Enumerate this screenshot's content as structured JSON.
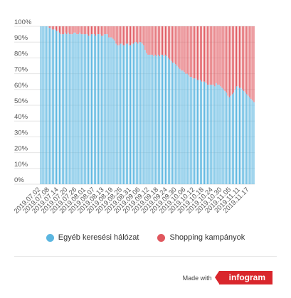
{
  "chart_data": {
    "type": "stacked-bar-100",
    "ylim": [
      0,
      100
    ],
    "y_ticks": [
      "0%",
      "10%",
      "20%",
      "30%",
      "40%",
      "50%",
      "60%",
      "70%",
      "80%",
      "90%",
      "100%"
    ],
    "x_tick_labels": [
      "2019.07.02",
      "2019.07.08",
      "2019.07.14",
      "2019.07.20",
      "2019.07.26",
      "2019.08.01",
      "2019.08.07",
      "2019.08.13",
      "2019.08.19",
      "2019.08.25",
      "2019.08.31",
      "2019.09.06",
      "2019.09.12",
      "2019.09.18",
      "2019.09.24",
      "2019.09.30",
      "2019.10.06",
      "2019.10.12",
      "2019.10.18",
      "2019.10.24",
      "2019.10.30",
      "2019.11.05",
      "2019.11.11",
      "2019.11.17"
    ],
    "x_range": [
      "2019.07.02",
      "2019.11.21"
    ],
    "series": [
      {
        "name": "Egyéb keresési hálózat",
        "color": "#5bb6e0",
        "values": [
          100,
          100,
          100,
          100,
          100,
          100,
          99,
          99,
          98,
          98,
          98,
          97,
          97,
          96,
          95,
          95,
          95,
          96,
          95,
          96,
          95,
          95,
          95,
          96,
          96,
          95,
          95,
          96,
          95,
          95,
          95,
          95,
          95,
          94,
          94,
          95,
          95,
          95,
          94,
          95,
          95,
          95,
          94,
          94,
          95,
          95,
          95,
          93,
          93,
          93,
          92,
          91,
          89,
          88,
          88,
          89,
          89,
          88,
          88,
          89,
          89,
          88,
          88,
          89,
          89,
          90,
          90,
          89,
          90,
          90,
          89,
          88,
          85,
          83,
          82,
          82,
          82,
          82,
          81,
          82,
          81,
          82,
          81,
          82,
          82,
          81,
          82,
          81,
          80,
          79,
          78,
          77,
          77,
          76,
          75,
          74,
          73,
          72,
          72,
          71,
          70,
          70,
          69,
          68,
          68,
          67,
          67,
          67,
          66,
          66,
          66,
          65,
          65,
          65,
          64,
          63,
          63,
          63,
          63,
          63,
          62,
          64,
          63,
          63,
          62,
          61,
          60,
          59,
          58,
          56,
          55,
          56,
          57,
          58,
          60,
          62,
          62,
          61,
          61,
          60,
          59,
          58,
          57,
          56,
          55,
          54,
          53,
          52
        ]
      },
      {
        "name": "Shopping kampányok",
        "color": "#e0575e",
        "values": [
          0,
          0,
          0,
          0,
          0,
          0,
          1,
          1,
          2,
          2,
          2,
          3,
          3,
          4,
          5,
          5,
          5,
          4,
          5,
          4,
          5,
          5,
          5,
          4,
          4,
          5,
          5,
          4,
          5,
          5,
          5,
          5,
          5,
          6,
          6,
          5,
          5,
          5,
          6,
          5,
          5,
          5,
          6,
          6,
          5,
          5,
          5,
          7,
          7,
          7,
          8,
          9,
          11,
          12,
          12,
          11,
          11,
          12,
          12,
          11,
          11,
          12,
          12,
          11,
          11,
          10,
          10,
          11,
          10,
          10,
          11,
          12,
          15,
          17,
          18,
          18,
          18,
          18,
          19,
          18,
          19,
          18,
          19,
          18,
          18,
          19,
          18,
          19,
          20,
          21,
          22,
          23,
          23,
          24,
          25,
          26,
          27,
          28,
          28,
          29,
          30,
          30,
          31,
          32,
          32,
          33,
          33,
          33,
          34,
          34,
          34,
          35,
          35,
          35,
          36,
          37,
          37,
          37,
          37,
          37,
          38,
          36,
          37,
          37,
          38,
          39,
          40,
          41,
          42,
          44,
          45,
          44,
          43,
          42,
          40,
          38,
          38,
          39,
          39,
          40,
          41,
          42,
          43,
          44,
          45,
          46,
          47,
          48
        ]
      }
    ]
  },
  "legend": {
    "items": [
      {
        "label": "Egyéb keresési hálózat",
        "color": "#5bb6e0"
      },
      {
        "label": "Shopping kampányok",
        "color": "#e0575e"
      }
    ]
  },
  "footer": {
    "made_with": "Made with",
    "brand": "infogram"
  }
}
